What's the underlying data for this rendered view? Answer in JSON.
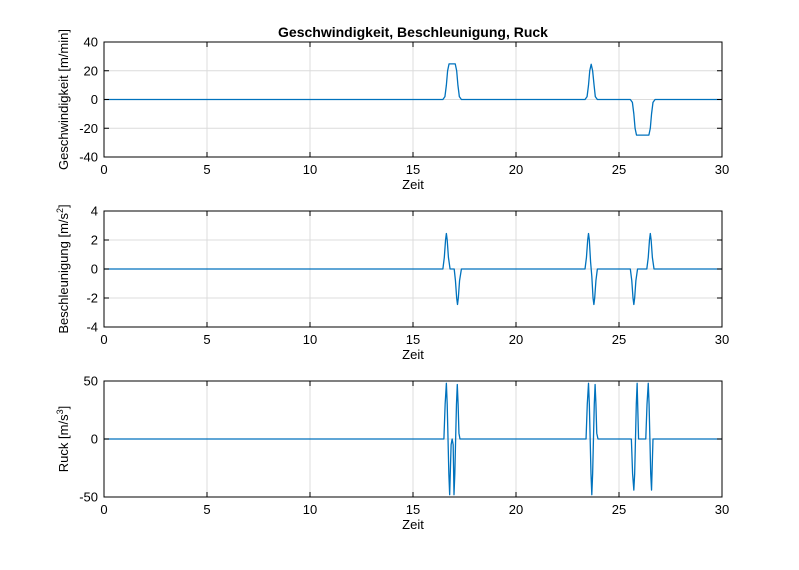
{
  "title": "Geschwindigkeit, Beschleunigung, Ruck",
  "chart_data": [
    {
      "type": "line",
      "title": "Geschwindigkeit, Beschleunigung, Ruck",
      "xlabel": "Zeit",
      "ylabel": "Geschwindigkeit [m/min]",
      "xlim": [
        0,
        30
      ],
      "ylim": [
        -40,
        40
      ],
      "xticks": [
        "0",
        "5",
        "10",
        "15",
        "20",
        "25",
        "30"
      ],
      "yticks": [
        "-40",
        "-20",
        "0",
        "20",
        "40"
      ],
      "grid": true,
      "color": "#0072bd",
      "series": [
        {
          "x": [
            0,
            16.45,
            16.55,
            16.62,
            16.68,
            16.75,
            17.05,
            17.12,
            17.18,
            17.25,
            17.35,
            23.35,
            23.45,
            23.52,
            23.58,
            23.65,
            23.72,
            23.79,
            23.85,
            23.95,
            25.55,
            25.65,
            25.72,
            25.78,
            25.85,
            26.45,
            26.52,
            26.58,
            26.65,
            26.75,
            30
          ],
          "y": [
            0,
            0,
            2,
            10,
            20,
            24.8,
            24.8,
            20,
            10,
            2,
            0,
            0,
            2,
            10,
            20,
            24.5,
            20,
            10,
            2,
            0,
            0,
            -2,
            -10,
            -20,
            -24.8,
            -24.8,
            -20,
            -10,
            -2,
            0,
            0
          ]
        }
      ]
    },
    {
      "type": "line",
      "xlabel": "Zeit",
      "ylabel": "Beschleunigung [m/s",
      "ylabel_sup": "2",
      "ylabel_close": "]",
      "xlim": [
        0,
        30
      ],
      "ylim": [
        -4,
        4
      ],
      "xticks": [
        "0",
        "5",
        "10",
        "15",
        "20",
        "25",
        "30"
      ],
      "yticks": [
        "-4",
        "-2",
        "0",
        "2",
        "4"
      ],
      "grid": true,
      "color": "#0072bd",
      "series": [
        {
          "x": [
            0,
            16.45,
            16.52,
            16.58,
            16.62,
            16.66,
            16.72,
            16.8,
            17.0,
            17.06,
            17.12,
            17.16,
            17.2,
            17.26,
            17.35,
            23.35,
            23.42,
            23.48,
            23.52,
            23.56,
            23.62,
            23.68,
            23.74,
            23.78,
            23.82,
            23.88,
            23.95,
            25.55,
            25.62,
            25.68,
            25.72,
            25.76,
            25.82,
            25.9,
            26.35,
            26.42,
            26.48,
            26.52,
            26.56,
            26.62,
            26.7,
            30
          ],
          "y": [
            0,
            0,
            0.8,
            2.0,
            2.45,
            2.0,
            0.8,
            0,
            0,
            -0.8,
            -2.0,
            -2.45,
            -2.0,
            -0.8,
            0,
            0,
            0.8,
            2.0,
            2.45,
            2.0,
            0.5,
            -0.5,
            -2.0,
            -2.45,
            -2.0,
            -0.8,
            0,
            0,
            -0.8,
            -2.0,
            -2.45,
            -2.0,
            -0.8,
            0,
            0,
            0.8,
            2.0,
            2.45,
            2.0,
            0.8,
            0,
            0
          ]
        }
      ]
    },
    {
      "type": "line",
      "xlabel": "Zeit",
      "ylabel": "Ruck [m/s",
      "ylabel_sup": "3",
      "ylabel_close": "]",
      "xlim": [
        0,
        30
      ],
      "ylim": [
        -50,
        50
      ],
      "xticks": [
        "0",
        "5",
        "10",
        "15",
        "20",
        "25",
        "30"
      ],
      "yticks": [
        "-50",
        "0",
        "50"
      ],
      "grid": true,
      "color": "#0072bd",
      "series": [
        {
          "x": [
            0,
            16.5,
            16.56,
            16.62,
            16.66,
            16.7,
            16.74,
            16.78,
            16.85,
            16.9,
            16.95,
            16.99,
            17.03,
            17.07,
            17.11,
            17.15,
            17.19,
            17.23,
            17.28,
            17.35,
            23.4,
            23.46,
            23.52,
            23.56,
            23.6,
            23.64,
            23.68,
            23.72,
            23.76,
            23.8,
            23.84,
            23.88,
            23.92,
            23.98,
            25.6,
            25.66,
            25.72,
            25.76,
            25.8,
            25.84,
            25.88,
            25.95,
            26.3,
            26.36,
            26.42,
            26.46,
            26.5,
            26.54,
            26.58,
            26.65,
            30
          ],
          "y": [
            0,
            0,
            30,
            48,
            30,
            0,
            -30,
            -48,
            -5,
            0,
            -5,
            -48,
            -30,
            0,
            30,
            47,
            30,
            5,
            0,
            0,
            0,
            30,
            48,
            30,
            0,
            -30,
            -48,
            -30,
            0,
            30,
            47,
            30,
            5,
            0,
            0,
            -30,
            -44,
            -30,
            0,
            30,
            48,
            0,
            0,
            30,
            48,
            30,
            0,
            -30,
            -44,
            0,
            0
          ]
        }
      ]
    }
  ]
}
